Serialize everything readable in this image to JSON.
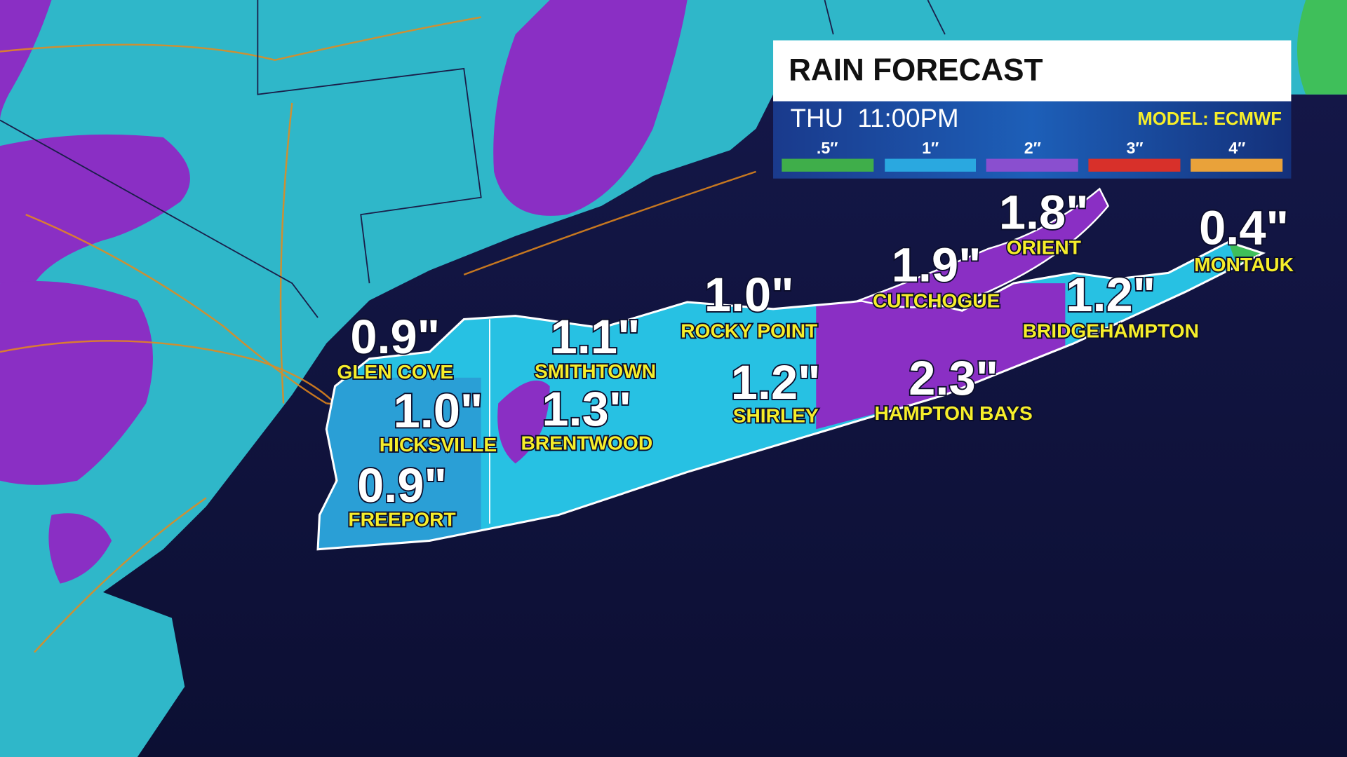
{
  "panel": {
    "title": "RAIN FORECAST",
    "time": "THU  11:00PM",
    "model": "MODEL: ECMWF",
    "legend": [
      ".5″",
      "1″",
      "2″",
      "3″",
      "4″"
    ]
  },
  "locations": [
    {
      "amount": "0.9\"",
      "name": "GLEN COVE"
    },
    {
      "amount": "1.0\"",
      "name": "HICKSVILLE"
    },
    {
      "amount": "0.9\"",
      "name": "FREEPORT"
    },
    {
      "amount": "1.1\"",
      "name": "SMITHTOWN"
    },
    {
      "amount": "1.3\"",
      "name": "BRENTWOOD"
    },
    {
      "amount": "1.0\"",
      "name": "ROCKY POINT"
    },
    {
      "amount": "1.2\"",
      "name": "SHIRLEY"
    },
    {
      "amount": "1.9\"",
      "name": "CUTCHOGUE"
    },
    {
      "amount": "2.3\"",
      "name": "HAMPTON BAYS"
    },
    {
      "amount": "1.8\"",
      "name": "ORIENT"
    },
    {
      "amount": "1.2\"",
      "name": "BRIDGEHAMPTON"
    },
    {
      "amount": "0.4\"",
      "name": "MONTAUK"
    }
  ]
}
